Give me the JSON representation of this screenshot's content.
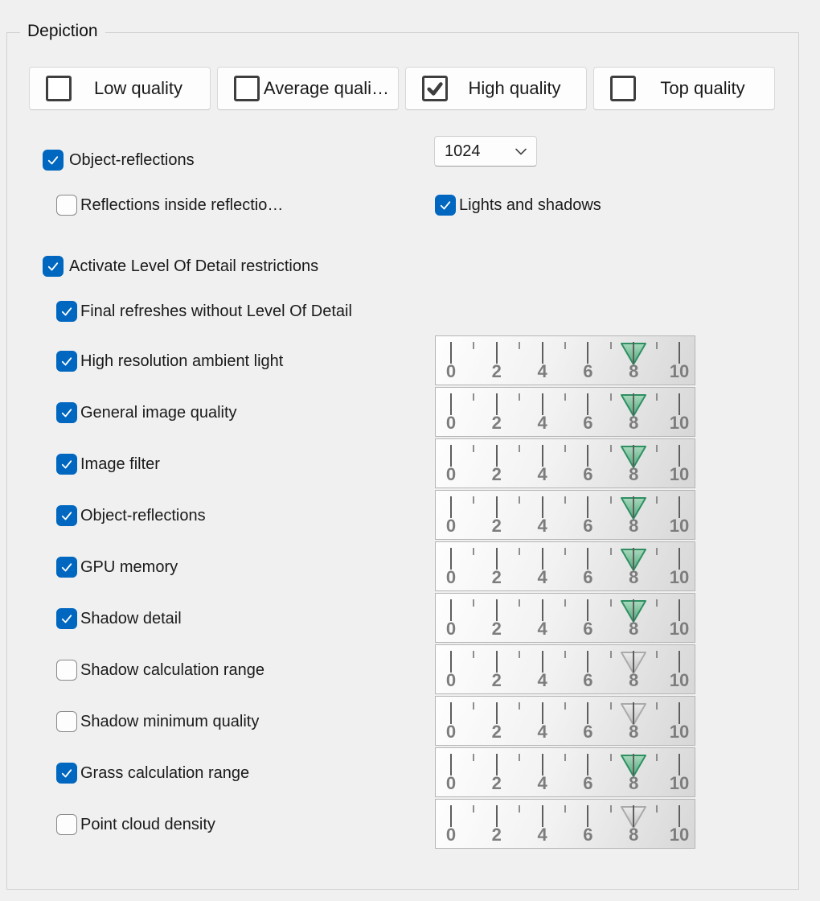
{
  "group": {
    "title": "Depiction"
  },
  "quality_buttons": [
    {
      "label": "Low quality",
      "checked": false
    },
    {
      "label": "Average quali…",
      "checked": false
    },
    {
      "label": "High quality",
      "checked": true
    },
    {
      "label": "Top quality",
      "checked": false
    }
  ],
  "object_reflections": {
    "label": "Object-reflections",
    "checked": true
  },
  "reflection_resolution_dropdown": {
    "value": "1024"
  },
  "reflections_inside": {
    "label": "Reflections inside reflectio…",
    "checked": false
  },
  "lights_and_shadows": {
    "label": "Lights and shadows",
    "checked": true
  },
  "lod_restrictions": {
    "label": "Activate Level Of Detail restrictions",
    "checked": true
  },
  "final_refreshes": {
    "label": "Final refreshes without Level Of Detail",
    "checked": true
  },
  "slider_rows": [
    {
      "label": "High resolution ambient light",
      "checked": true,
      "value": 8
    },
    {
      "label": "General image quality",
      "checked": true,
      "value": 8
    },
    {
      "label": "Image filter",
      "checked": true,
      "value": 8
    },
    {
      "label": "Object-reflections",
      "checked": true,
      "value": 8
    },
    {
      "label": "GPU memory",
      "checked": true,
      "value": 8
    },
    {
      "label": "Shadow detail",
      "checked": true,
      "value": 8
    },
    {
      "label": "Shadow calculation range",
      "checked": false,
      "value": 8
    },
    {
      "label": "Shadow minimum quality",
      "checked": false,
      "value": 8
    },
    {
      "label": "Grass calculation range",
      "checked": true,
      "value": 8
    },
    {
      "label": "Point cloud density",
      "checked": false,
      "value": 8
    }
  ],
  "slider_scale": {
    "min": 0,
    "max": 10,
    "tick_labels": [
      "0",
      "2",
      "4",
      "6",
      "8",
      "10"
    ]
  },
  "colors": {
    "accent": "#0067C0",
    "pointer_green_light": "#a9d9bd",
    "pointer_green_dark": "#4fa87a",
    "pointer_green_stroke": "#2f8f63",
    "pointer_gray_light": "#ececec",
    "pointer_gray_dark": "#bfbfbf",
    "pointer_gray_stroke": "#aaaaaa"
  }
}
